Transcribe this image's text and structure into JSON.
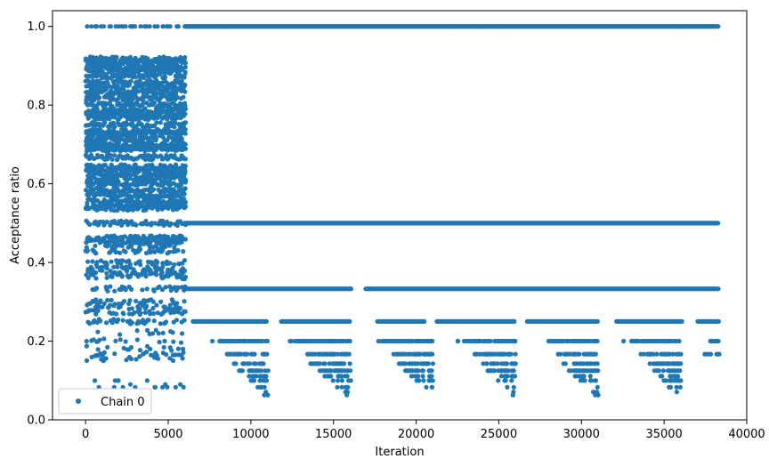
{
  "chart_data": {
    "type": "scatter",
    "title": "",
    "xlabel": "Iteration",
    "ylabel": "Acceptance ratio",
    "xlim": [
      -2000,
      40000
    ],
    "ylim": [
      0.0,
      1.04
    ],
    "xticks": [
      0,
      5000,
      10000,
      15000,
      20000,
      25000,
      30000,
      35000,
      40000
    ],
    "xtick_labels": [
      "0",
      "5000",
      "10000",
      "15000",
      "20000",
      "25000",
      "30000",
      "35000",
      "40000"
    ],
    "yticks": [
      0.0,
      0.2,
      0.4,
      0.6,
      0.8,
      1.0
    ],
    "ytick_labels": [
      "0.0",
      "0.2",
      "0.4",
      "0.6",
      "0.8",
      "1.0"
    ],
    "grid": false,
    "legend": {
      "placement": "lower-left",
      "entries": [
        "Chain 0"
      ]
    },
    "colors": {
      "series": "#1f77b4"
    },
    "series": [
      {
        "name": "Chain 0",
        "marker": "circle",
        "description_segments": [
          {
            "x_range": [
              0,
              6000
            ],
            "y_values": [
              1.0,
              0.917,
              0.909,
              0.9,
              0.889,
              0.875,
              0.857,
              0.846,
              0.833,
              0.818,
              0.8,
              0.786,
              0.778,
              0.769,
              0.75,
              0.733,
              0.727,
              0.714,
              0.7,
              0.692,
              0.688,
              0.667,
              0.643,
              0.636,
              0.625,
              0.615,
              0.6,
              0.583,
              0.571,
              0.556,
              0.545,
              0.538,
              0.5,
              0.462,
              0.455,
              0.444,
              0.429,
              0.4,
              0.385,
              0.375,
              0.364,
              0.333,
              0.3,
              0.286,
              0.273,
              0.25,
              0.222,
              0.2,
              0.182,
              0.167,
              0.154,
              0.1,
              0.09,
              0.083
            ]
          },
          {
            "x_range": [
              6000,
              38300
            ],
            "y_values": [
              1.0,
              0.5
            ]
          },
          {
            "x_range": [
              6000,
              38300
            ],
            "y_values": [
              0.333
            ]
          },
          {
            "x_range": [
              6500,
              38300
            ],
            "y_values": [
              0.25
            ]
          },
          {
            "x_range": [
              7500,
              38300
            ],
            "y_values": [
              0.2
            ]
          },
          {
            "x_range": [
              7500,
              36000
            ],
            "y_values": [
              0.167,
              0.143,
              0.125,
              0.111,
              0.1,
              0.083,
              0.071,
              0.063
            ]
          }
        ]
      }
    ]
  }
}
